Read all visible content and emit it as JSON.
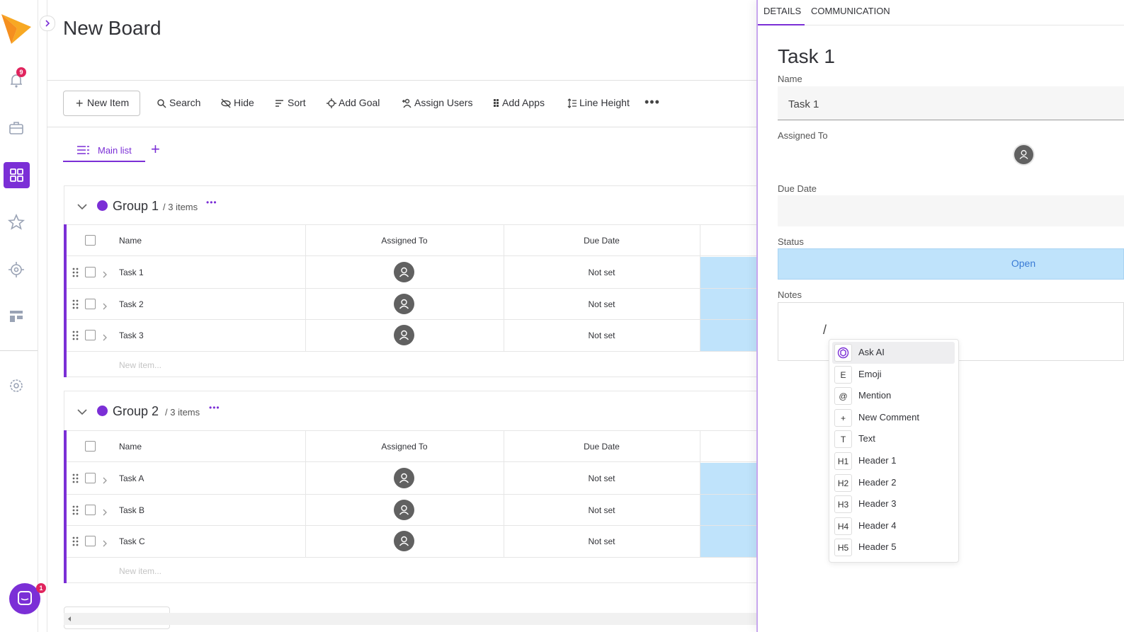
{
  "sidebar": {
    "notification_badge": "9",
    "chat_badge": "1"
  },
  "header": {
    "title": "New Board"
  },
  "toolbar": {
    "items": [
      "New Item",
      "Search",
      "Hide",
      "Sort",
      "Add Goal",
      "Assign Users",
      "Add Apps",
      "Line Height"
    ]
  },
  "views": {
    "tabs": [
      "Main list"
    ]
  },
  "groups": [
    {
      "name": "Group 1",
      "count": "/ 3 items",
      "columns": [
        "Name",
        "Assigned To",
        "Due Date"
      ],
      "rows": [
        {
          "name": "Task 1",
          "due": "Not set"
        },
        {
          "name": "Task 2",
          "due": "Not set"
        },
        {
          "name": "Task 3",
          "due": "Not set"
        }
      ],
      "new_item": "New item..."
    },
    {
      "name": "Group 2",
      "count": "/ 3 items",
      "columns": [
        "Name",
        "Assigned To",
        "Due Date"
      ],
      "rows": [
        {
          "name": "Task A",
          "due": "Not set"
        },
        {
          "name": "Task B",
          "due": "Not set"
        },
        {
          "name": "Task C",
          "due": "Not set"
        }
      ],
      "new_item": "New item..."
    }
  ],
  "panel": {
    "tabs": [
      "DETAILS",
      "COMMUNICATION"
    ],
    "title": "Task 1",
    "name_label": "Name",
    "name_value": "Task 1",
    "assigned_label": "Assigned To",
    "due_label": "Due Date",
    "status_label": "Status",
    "status_value": "Open",
    "notes_label": "Notes",
    "notes_value": "/"
  },
  "menu": {
    "items": [
      {
        "label": "Ask AI"
      },
      {
        "key": "E",
        "label": "Emoji"
      },
      {
        "key": "@",
        "label": "Mention"
      },
      {
        "key": "+",
        "label": "New Comment"
      },
      {
        "key": "T",
        "label": "Text"
      },
      {
        "key": "H1",
        "label": "Header 1"
      },
      {
        "key": "H2",
        "label": "Header 2"
      },
      {
        "key": "H3",
        "label": "Header 3"
      },
      {
        "key": "H4",
        "label": "Header 4"
      },
      {
        "key": "H5",
        "label": "Header 5"
      }
    ]
  }
}
